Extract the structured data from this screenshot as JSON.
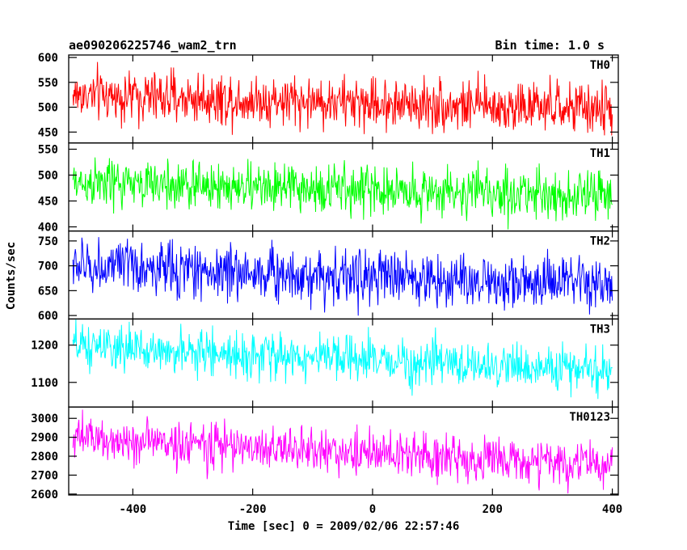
{
  "chart_data": {
    "type": "line",
    "title_left": "ae090206225746_wam2_trn",
    "title_right": "Bin time: 1.0 s",
    "xlabel": "Time [sec] 0 = 2009/02/06 22:57:46",
    "ylabel": "Counts/sec",
    "xlim": [
      -507,
      410
    ],
    "x_range": [
      -500,
      400
    ],
    "bin_time_s": 1.0,
    "x_ticks": [
      -400,
      -200,
      0,
      200,
      400
    ],
    "panels": [
      {
        "name": "TH0",
        "color": "#ff0000",
        "ylim": [
          428,
          605
        ],
        "y_ticks": [
          450,
          500,
          550,
          600
        ],
        "mean_start": 525,
        "mean_end": 495,
        "noise": 26
      },
      {
        "name": "TH1",
        "color": "#00ff00",
        "ylim": [
          392,
          562
        ],
        "y_ticks": [
          400,
          450,
          500,
          550
        ],
        "mean_start": 485,
        "mean_end": 460,
        "noise": 24
      },
      {
        "name": "TH2",
        "color": "#0000ff",
        "ylim": [
          593,
          770
        ],
        "y_ticks": [
          600,
          650,
          700,
          750
        ],
        "mean_start": 700,
        "mean_end": 660,
        "noise": 28
      },
      {
        "name": "TH3",
        "color": "#00ffff",
        "ylim": [
          1034,
          1270
        ],
        "y_ticks": [
          1100,
          1200
        ],
        "mean_start": 1195,
        "mean_end": 1130,
        "noise": 30
      },
      {
        "name": "TH0123",
        "color": "#ff00ff",
        "ylim": [
          2595,
          3060
        ],
        "y_ticks": [
          2600,
          2700,
          2800,
          2900,
          3000
        ],
        "mean_start": 2895,
        "mean_end": 2750,
        "noise": 60
      }
    ]
  }
}
